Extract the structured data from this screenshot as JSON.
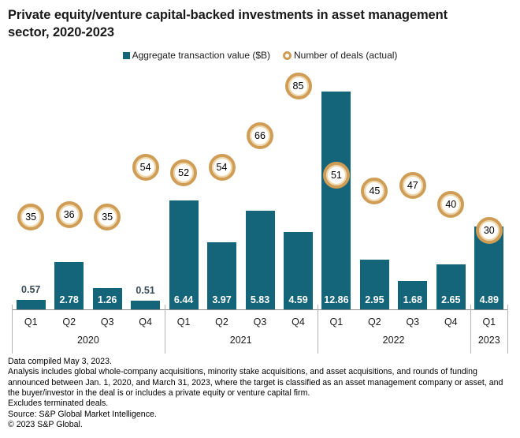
{
  "title": {
    "line1": "Private equity/venture capital-backed investments in asset management",
    "line2": "sector, 2020-2023"
  },
  "legend": {
    "bars_label": "Aggregate transaction value ($B)",
    "deals_label": "Number of deals (actual)"
  },
  "colors": {
    "bar_teal": "#14647a",
    "deal_ring": "#cf9d56",
    "deal_ring_inner": "#eed7ab",
    "outside_label": "#3a4a56",
    "axis_line": "#8c8c8c"
  },
  "chart_data": {
    "type": "bar",
    "title": "Private equity/venture capital-backed investments in asset management sector, 2020-2023",
    "categories": [
      "Q1",
      "Q2",
      "Q3",
      "Q4",
      "Q1",
      "Q2",
      "Q3",
      "Q4",
      "Q1",
      "Q2",
      "Q3",
      "Q4",
      "Q1"
    ],
    "year_groups": [
      {
        "label": "2020",
        "quarters": 4
      },
      {
        "label": "2021",
        "quarters": 4
      },
      {
        "label": "2022",
        "quarters": 4
      },
      {
        "label": "2023",
        "quarters": 1
      }
    ],
    "series": [
      {
        "name": "Aggregate transaction value ($B)",
        "type": "bar",
        "values": [
          0.57,
          2.78,
          1.26,
          0.51,
          6.44,
          3.97,
          5.83,
          4.59,
          12.86,
          2.95,
          1.68,
          2.65,
          4.89
        ],
        "axis_max": 14
      },
      {
        "name": "Number of deals (actual)",
        "type": "marker",
        "values": [
          35,
          36,
          35,
          54,
          52,
          54,
          66,
          85,
          51,
          45,
          47,
          40,
          30
        ],
        "axis_max": 90
      }
    ],
    "xlabel": "",
    "ylabel": "",
    "grid": false,
    "legend_position": "top",
    "value_labels_shown": true
  },
  "footer": {
    "lines": [
      "Data compiled May 3, 2023.",
      "Analysis includes global whole-company acquisitions, minority stake acquisitions, and asset acquisitions, and rounds of funding announced between Jan. 1, 2020, and March 31, 2023, where the target is classified as an asset management company or asset, and the buyer/investor in the deal is or includes a private equity or venture capital firm.",
      "Excludes terminated deals.",
      "Source: S&P Global Market Intelligence.",
      "© 2023 S&P Global."
    ]
  }
}
